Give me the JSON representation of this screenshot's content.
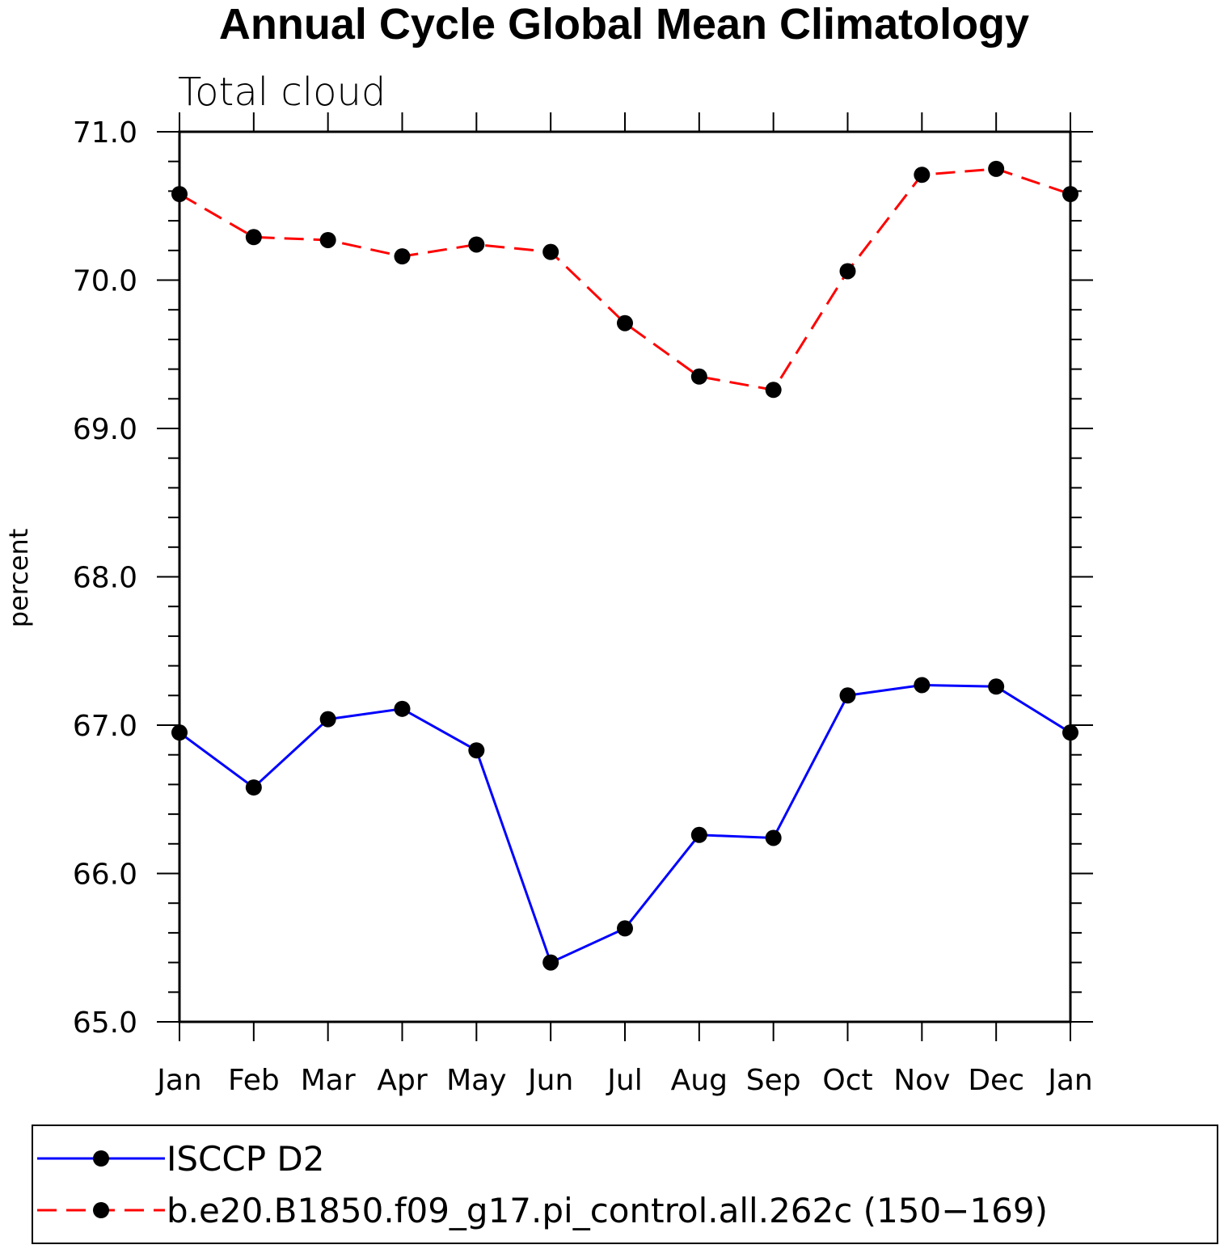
{
  "chart_data": {
    "type": "line",
    "title": "Annual Cycle Global Mean Climatology",
    "subtitle": "Total cloud",
    "xlabel": "",
    "ylabel": "percent",
    "categories": [
      "Jan",
      "Feb",
      "Mar",
      "Apr",
      "May",
      "Jun",
      "Jul",
      "Aug",
      "Sep",
      "Oct",
      "Nov",
      "Dec",
      "Jan"
    ],
    "ylim": [
      65.0,
      71.0
    ],
    "yticks": [
      "65.0",
      "66.0",
      "67.0",
      "68.0",
      "69.0",
      "70.0",
      "71.0"
    ],
    "yticks_values": [
      65.0,
      66.0,
      67.0,
      68.0,
      69.0,
      70.0,
      71.0
    ],
    "grid": false,
    "legend_position": "bottom",
    "series": [
      {
        "name": "ISCCP D2",
        "color": "#0000ff",
        "line_style": "solid",
        "marker": "filled-circle",
        "values": [
          66.95,
          66.58,
          67.04,
          67.11,
          66.83,
          65.4,
          65.63,
          66.26,
          66.24,
          67.2,
          67.27,
          67.26,
          66.95
        ]
      },
      {
        "name": "b.e20.B1850.f09_g17.pi_control.all.262c (150−169)",
        "color": "#ff0000",
        "line_style": "dashed",
        "marker": "filled-circle",
        "values": [
          70.58,
          70.29,
          70.27,
          70.16,
          70.24,
          70.19,
          69.71,
          69.35,
          69.26,
          70.06,
          70.71,
          70.75,
          70.58
        ]
      }
    ]
  }
}
